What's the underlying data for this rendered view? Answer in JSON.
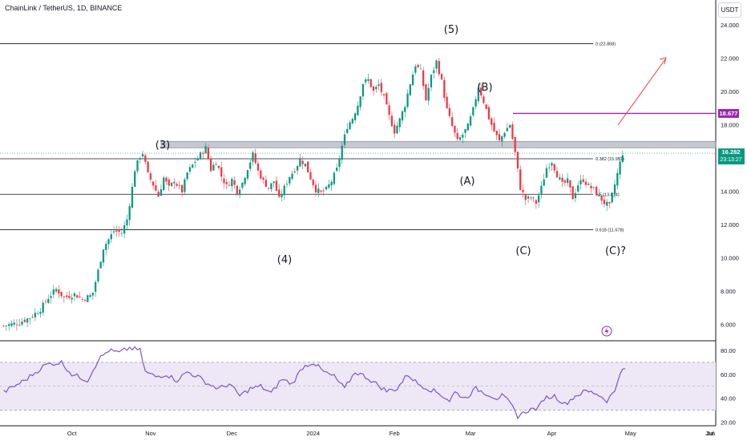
{
  "header": {
    "symbol": "ChainLink / TetherUS, 1D, BINANCE",
    "currency_button": "USDT"
  },
  "price_axis": {
    "ticks": [
      "24.000",
      "22.000",
      "20.000",
      "18.000",
      "16.000",
      "14.000",
      "12.000",
      "10.000",
      "8.000",
      "6.000"
    ],
    "target_tag": "18.677",
    "last_price": "16.282",
    "countdown": "23:13:27"
  },
  "rsi_axis": {
    "ticks": [
      "80.00",
      "60.00",
      "40.00",
      "20.00"
    ]
  },
  "time_axis": {
    "ticks": [
      "Oct",
      "Nov",
      "Dec",
      "2024",
      "Feb",
      "Mar",
      "Apr",
      "May",
      "Jun",
      "Jul"
    ]
  },
  "fib_labels": {
    "f0": "0 (22.868)",
    "f382": "0.382 (15.951)",
    "f5": "0.5 (13.814)",
    "f618": "0.618 (11.678)"
  },
  "wave_labels": [
    "(5)",
    "(3)",
    "(B)",
    "(A)",
    "(4)",
    "(C)",
    "(C)?"
  ],
  "colors": {
    "up": "#089981",
    "down": "#f23645",
    "fib_line": "#131722",
    "resistance_zone": "#b2b5be",
    "target_line": "#9c27b0",
    "arrow": "#f23645",
    "rsi": "#7e57c2",
    "rsi_band": "#ede7f6"
  },
  "chart_data": {
    "type": "candlestick",
    "price_ticks": [
      24,
      22,
      20,
      18,
      16,
      14,
      12,
      10,
      8,
      6
    ],
    "price_range": [
      5,
      25.5
    ],
    "rsi_ticks": [
      80,
      60,
      40,
      20
    ],
    "rsi_range": [
      17,
      88
    ],
    "rsi_bands": [
      70,
      50,
      30
    ],
    "fib_levels": [
      22.868,
      15.951,
      13.814,
      11.678
    ],
    "resistance_zone": [
      16.6,
      17.0
    ],
    "target_level": 18.677,
    "last_price": 16.282,
    "anchors": [
      [
        0,
        5.9
      ],
      [
        6,
        6.1
      ],
      [
        10,
        6.4
      ],
      [
        14,
        6.9
      ],
      [
        17,
        7.6
      ],
      [
        20,
        8.1
      ],
      [
        23,
        7.6
      ],
      [
        27,
        7.8
      ],
      [
        30,
        7.5
      ],
      [
        33,
        7.7
      ],
      [
        34,
        7.9
      ],
      [
        36,
        9.2
      ],
      [
        38,
        10.6
      ],
      [
        40,
        11.1
      ],
      [
        42,
        11.6
      ],
      [
        45,
        11.5
      ],
      [
        47,
        12.3
      ],
      [
        49,
        14.2
      ],
      [
        50,
        15.3
      ],
      [
        52,
        16.1
      ],
      [
        53,
        16.3
      ],
      [
        55,
        15.0
      ],
      [
        57,
        14.4
      ],
      [
        59,
        13.7
      ],
      [
        61,
        14.8
      ],
      [
        63,
        14.2
      ],
      [
        65,
        14.6
      ],
      [
        68,
        14.0
      ],
      [
        70,
        15.1
      ],
      [
        73,
        15.8
      ],
      [
        75,
        16.2
      ],
      [
        77,
        16.6
      ],
      [
        79,
        15.3
      ],
      [
        81,
        15.8
      ],
      [
        83,
        14.9
      ],
      [
        85,
        14.3
      ],
      [
        87,
        14.7
      ],
      [
        89,
        14.0
      ],
      [
        91,
        14.5
      ],
      [
        93,
        15.4
      ],
      [
        95,
        16.2
      ],
      [
        97,
        15.2
      ],
      [
        99,
        14.6
      ],
      [
        101,
        14.2
      ],
      [
        103,
        14.6
      ],
      [
        105,
        13.5
      ],
      [
        107,
        14.2
      ],
      [
        109,
        14.9
      ],
      [
        111,
        15.3
      ],
      [
        113,
        15.9
      ],
      [
        115,
        15.6
      ],
      [
        117,
        14.8
      ],
      [
        119,
        14.1
      ],
      [
        121,
        13.9
      ],
      [
        123,
        14.1
      ],
      [
        125,
        14.6
      ],
      [
        127,
        15.3
      ],
      [
        129,
        16.7
      ],
      [
        131,
        17.9
      ],
      [
        133,
        18.4
      ],
      [
        135,
        19.2
      ],
      [
        137,
        20.5
      ],
      [
        139,
        20.7
      ],
      [
        141,
        20.0
      ],
      [
        143,
        20.4
      ],
      [
        145,
        19.6
      ],
      [
        147,
        18.5
      ],
      [
        149,
        17.6
      ],
      [
        151,
        18.3
      ],
      [
        153,
        19.2
      ],
      [
        155,
        20.5
      ],
      [
        157,
        21.6
      ],
      [
        159,
        21.2
      ],
      [
        161,
        19.5
      ],
      [
        163,
        20.9
      ],
      [
        165,
        21.8
      ],
      [
        167,
        20.6
      ],
      [
        169,
        18.9
      ],
      [
        171,
        17.9
      ],
      [
        173,
        17.0
      ],
      [
        175,
        17.4
      ],
      [
        177,
        17.9
      ],
      [
        179,
        18.9
      ],
      [
        181,
        20.3
      ],
      [
        183,
        19.4
      ],
      [
        185,
        18.4
      ],
      [
        187,
        17.6
      ],
      [
        189,
        17.0
      ],
      [
        191,
        17.6
      ],
      [
        193,
        18.0
      ],
      [
        195,
        16.3
      ],
      [
        197,
        14.2
      ],
      [
        199,
        13.5
      ],
      [
        201,
        13.6
      ],
      [
        203,
        13.3
      ],
      [
        205,
        14.2
      ],
      [
        207,
        15.4
      ],
      [
        209,
        15.8
      ],
      [
        211,
        15.0
      ],
      [
        213,
        14.4
      ],
      [
        215,
        14.6
      ],
      [
        217,
        13.6
      ],
      [
        219,
        14.4
      ],
      [
        221,
        14.7
      ],
      [
        223,
        14.3
      ],
      [
        225,
        14.1
      ],
      [
        227,
        13.7
      ],
      [
        229,
        13.3
      ],
      [
        231,
        13.1
      ],
      [
        233,
        14.4
      ],
      [
        235,
        15.7
      ],
      [
        236,
        16.28
      ]
    ],
    "rsi_anchors": [
      [
        0,
        45
      ],
      [
        8,
        55
      ],
      [
        16,
        68
      ],
      [
        22,
        70
      ],
      [
        26,
        60
      ],
      [
        32,
        55
      ],
      [
        36,
        72
      ],
      [
        40,
        80
      ],
      [
        44,
        78
      ],
      [
        48,
        82
      ],
      [
        52,
        80
      ],
      [
        54,
        62
      ],
      [
        58,
        58
      ],
      [
        62,
        60
      ],
      [
        66,
        55
      ],
      [
        70,
        62
      ],
      [
        74,
        58
      ],
      [
        78,
        52
      ],
      [
        82,
        48
      ],
      [
        86,
        52
      ],
      [
        90,
        42
      ],
      [
        94,
        48
      ],
      [
        98,
        50
      ],
      [
        102,
        44
      ],
      [
        106,
        56
      ],
      [
        110,
        52
      ],
      [
        114,
        66
      ],
      [
        118,
        70
      ],
      [
        122,
        62
      ],
      [
        126,
        58
      ],
      [
        130,
        48
      ],
      [
        134,
        62
      ],
      [
        138,
        58
      ],
      [
        142,
        52
      ],
      [
        146,
        46
      ],
      [
        150,
        48
      ],
      [
        154,
        60
      ],
      [
        158,
        52
      ],
      [
        162,
        48
      ],
      [
        166,
        44
      ],
      [
        170,
        38
      ],
      [
        172,
        45
      ],
      [
        176,
        40
      ],
      [
        180,
        48
      ],
      [
        184,
        44
      ],
      [
        188,
        40
      ],
      [
        190,
        42
      ],
      [
        193,
        36
      ],
      [
        196,
        25
      ],
      [
        200,
        30
      ],
      [
        204,
        32
      ],
      [
        206,
        40
      ],
      [
        210,
        42
      ],
      [
        214,
        35
      ],
      [
        218,
        42
      ],
      [
        222,
        46
      ],
      [
        226,
        44
      ],
      [
        230,
        38
      ],
      [
        233,
        46
      ],
      [
        235,
        62
      ],
      [
        237,
        64
      ]
    ],
    "bars_total": 272
  },
  "wave_positions_note": "labels placed in template"
}
